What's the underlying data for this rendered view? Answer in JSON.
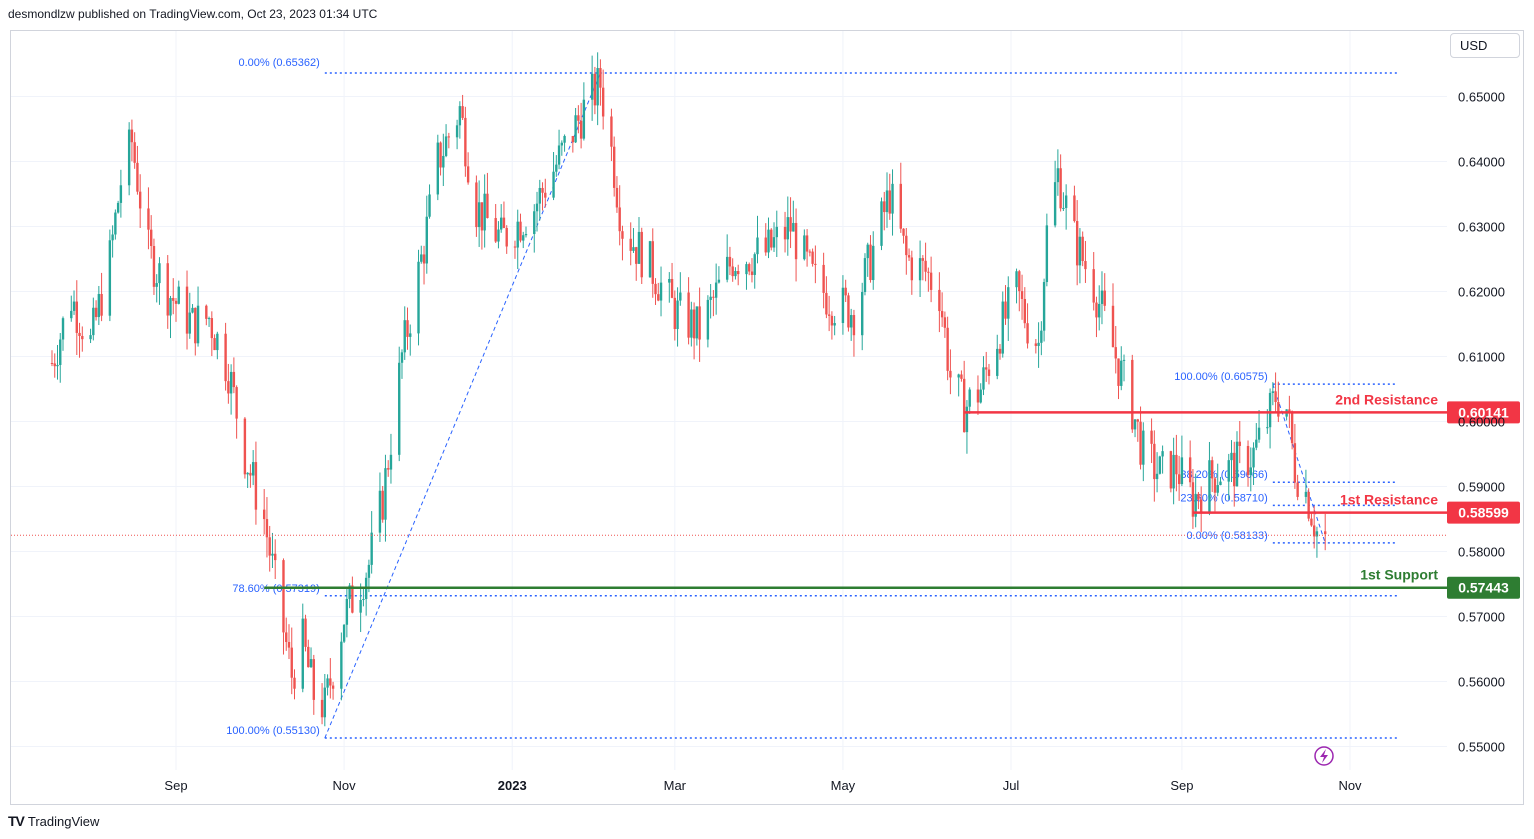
{
  "header": {
    "attribution": "desmondlzw published on TradingView.com, Oct 23, 2023 01:34 UTC"
  },
  "toolbar": {
    "currency": "USD"
  },
  "footer": {
    "brand": "TradingView"
  },
  "colors": {
    "bull": "#26a69a",
    "bear": "#ef5350",
    "resistance": "#f23645",
    "support": "#2e7d32",
    "fib": "#2962ff",
    "fibText": "#2962ff",
    "grid": "#f0f3fa"
  },
  "chart_data": {
    "type": "candlestick",
    "symbol_currency": "USD",
    "ylim": [
      0.545,
      0.659
    ],
    "y_ticks": [
      {
        "value": 0.55,
        "label": "0.55000"
      },
      {
        "value": 0.56,
        "label": "0.56000"
      },
      {
        "value": 0.57,
        "label": "0.57000"
      },
      {
        "value": 0.58,
        "label": "0.58000"
      },
      {
        "value": 0.59,
        "label": "0.59000"
      },
      {
        "value": 0.6,
        "label": "0.60000"
      },
      {
        "value": 0.61,
        "label": "0.61000"
      },
      {
        "value": 0.62,
        "label": "0.62000"
      },
      {
        "value": 0.63,
        "label": "0.63000"
      },
      {
        "value": 0.64,
        "label": "0.64000"
      },
      {
        "value": 0.65,
        "label": "0.65000"
      }
    ],
    "x_ticks": [
      {
        "date": "2022-09-01",
        "label": "Sep",
        "bold": false
      },
      {
        "date": "2022-11-01",
        "label": "Nov",
        "bold": false
      },
      {
        "date": "2023-01-01",
        "label": "2023",
        "bold": true
      },
      {
        "date": "2023-03-01",
        "label": "Mar",
        "bold": false
      },
      {
        "date": "2023-05-01",
        "label": "May",
        "bold": false
      },
      {
        "date": "2023-07-01",
        "label": "Jul",
        "bold": false
      },
      {
        "date": "2023-09-01",
        "label": "Sep",
        "bold": false
      },
      {
        "date": "2023-11-01",
        "label": "Nov",
        "bold": false
      }
    ],
    "price_path": [
      [
        "2022-07-18",
        0.609
      ],
      [
        "2022-07-25",
        0.619
      ],
      [
        "2022-08-01",
        0.612
      ],
      [
        "2022-08-08",
        0.625
      ],
      [
        "2022-08-12",
        0.637
      ],
      [
        "2022-08-16",
        0.643
      ],
      [
        "2022-08-22",
        0.626
      ],
      [
        "2022-08-29",
        0.62
      ],
      [
        "2022-09-07",
        0.615
      ],
      [
        "2022-09-13",
        0.616
      ],
      [
        "2022-09-20",
        0.608
      ],
      [
        "2022-09-26",
        0.595
      ],
      [
        "2022-10-03",
        0.585
      ],
      [
        "2022-10-07",
        0.575
      ],
      [
        "2022-10-13",
        0.561
      ],
      [
        "2022-10-17",
        0.566
      ],
      [
        "2022-10-21",
        0.558
      ],
      [
        "2022-10-25",
        0.556
      ],
      [
        "2022-11-01",
        0.57
      ],
      [
        "2022-11-10",
        0.578
      ],
      [
        "2022-11-15",
        0.588
      ],
      [
        "2022-11-22",
        0.61
      ],
      [
        "2022-11-30",
        0.627
      ],
      [
        "2022-12-05",
        0.64
      ],
      [
        "2022-12-13",
        0.648
      ],
      [
        "2022-12-19",
        0.633
      ],
      [
        "2022-12-28",
        0.628
      ],
      [
        "2023-01-09",
        0.633
      ],
      [
        "2023-01-20",
        0.642
      ],
      [
        "2023-01-27",
        0.648
      ],
      [
        "2023-02-02",
        0.652
      ],
      [
        "2023-02-07",
        0.639
      ],
      [
        "2023-02-10",
        0.63
      ],
      [
        "2023-02-20",
        0.624
      ],
      [
        "2023-03-01",
        0.617
      ],
      [
        "2023-03-10",
        0.614
      ],
      [
        "2023-03-22",
        0.625
      ],
      [
        "2023-04-03",
        0.626
      ],
      [
        "2023-04-12",
        0.63
      ],
      [
        "2023-04-20",
        0.622
      ],
      [
        "2023-04-28",
        0.618
      ],
      [
        "2023-05-05",
        0.617
      ],
      [
        "2023-05-11",
        0.625
      ],
      [
        "2023-05-18",
        0.635
      ],
      [
        "2023-05-24",
        0.625
      ],
      [
        "2023-05-31",
        0.623
      ],
      [
        "2023-06-05",
        0.62
      ],
      [
        "2023-06-09",
        0.607
      ],
      [
        "2023-06-14",
        0.602
      ],
      [
        "2023-06-20",
        0.605
      ],
      [
        "2023-06-26",
        0.613
      ],
      [
        "2023-07-03",
        0.62
      ],
      [
        "2023-07-07",
        0.615
      ],
      [
        "2023-07-11",
        0.612
      ],
      [
        "2023-07-14",
        0.629
      ],
      [
        "2023-07-18",
        0.638
      ],
      [
        "2023-07-24",
        0.628
      ],
      [
        "2023-07-31",
        0.621
      ],
      [
        "2023-08-08",
        0.61
      ],
      [
        "2023-08-14",
        0.602
      ],
      [
        "2023-08-18",
        0.595
      ],
      [
        "2023-08-24",
        0.592
      ],
      [
        "2023-08-30",
        0.593
      ],
      [
        "2023-09-05",
        0.588
      ],
      [
        "2023-09-13",
        0.592
      ],
      [
        "2023-09-20",
        0.593
      ],
      [
        "2023-09-27",
        0.595
      ],
      [
        "2023-10-02",
        0.6
      ],
      [
        "2023-10-05",
        0.604
      ],
      [
        "2023-10-09",
        0.602
      ],
      [
        "2023-10-12",
        0.593
      ],
      [
        "2023-10-17",
        0.588
      ],
      [
        "2023-10-20",
        0.583
      ],
      [
        "2023-10-23",
        0.582
      ]
    ],
    "levels": [
      {
        "name": "2nd Resistance",
        "value": 0.60141,
        "label": "0.60141",
        "kind": "resistance",
        "start": "2023-06-14"
      },
      {
        "name": "1st Resistance",
        "value": 0.58599,
        "label": "0.58599",
        "kind": "resistance",
        "start": "2023-09-05"
      },
      {
        "name": "1st Support",
        "value": 0.57443,
        "label": "0.57443",
        "kind": "support",
        "start": "2022-10-03"
      }
    ],
    "current_price": 0.5825,
    "fib_retracements": [
      {
        "from": {
          "date": "2022-10-25",
          "value": 0.5513
        },
        "to": {
          "date": "2023-02-02",
          "value": 0.65362
        },
        "line_end": "2023-11-18",
        "levels": [
          {
            "value": 0.65362,
            "label": "0.00% (0.65362)",
            "label_at": "top"
          },
          {
            "value": 0.57319,
            "label": "78.60% (0.57319)",
            "label_at": "left"
          },
          {
            "value": 0.5513,
            "label": "100.00% (0.55130)",
            "label_at": "left"
          }
        ]
      },
      {
        "from": {
          "date": "2023-10-04",
          "value": 0.60575
        },
        "to": {
          "date": "2023-10-23",
          "value": 0.58133
        },
        "line_end": "2023-11-18",
        "levels": [
          {
            "value": 0.60575,
            "label": "100.00% (0.60575)",
            "label_at": "left"
          },
          {
            "value": 0.59066,
            "label": "38.20% (0.59066)",
            "label_at": "left"
          },
          {
            "value": 0.5871,
            "label": "23.60% (0.58710)",
            "label_at": "left"
          },
          {
            "value": 0.58133,
            "label": "0.00% (0.58133)",
            "label_at": "left"
          }
        ]
      }
    ]
  }
}
